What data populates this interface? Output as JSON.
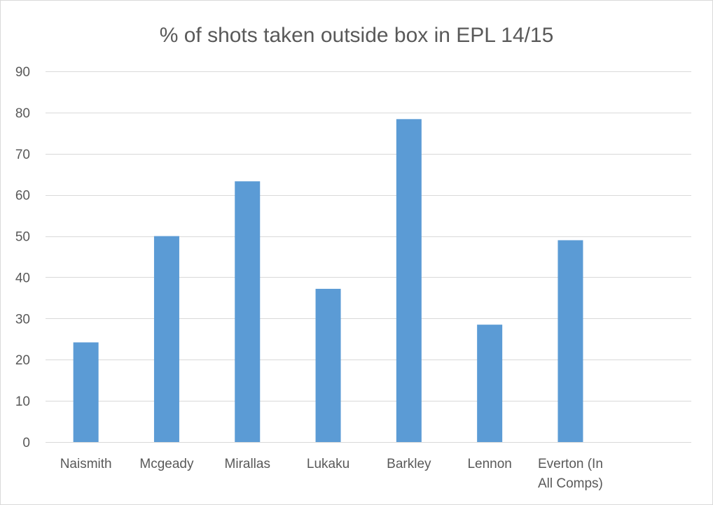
{
  "chart_data": {
    "type": "bar",
    "title": "% of shots taken outside box in EPL 14/15",
    "xlabel": "",
    "ylabel": "",
    "categories": [
      "Naismith",
      "Mcgeady",
      "Mirallas",
      "Lukaku",
      "Barkley",
      "Lennon",
      "Everton (In All Comps)"
    ],
    "category_label_lines": [
      [
        "Naismith"
      ],
      [
        "Mcgeady"
      ],
      [
        "Mirallas"
      ],
      [
        "Lukaku"
      ],
      [
        "Barkley"
      ],
      [
        "Lennon"
      ],
      [
        "Everton (In",
        "All Comps)"
      ]
    ],
    "values": [
      24.2,
      50,
      63.3,
      37.2,
      78.4,
      28.5,
      49
    ],
    "ylim": [
      0,
      90
    ],
    "yticks": [
      0,
      10,
      20,
      30,
      40,
      50,
      60,
      70,
      80,
      90
    ],
    "grid": true,
    "legend": "none",
    "bar_color": "#5b9bd5"
  }
}
